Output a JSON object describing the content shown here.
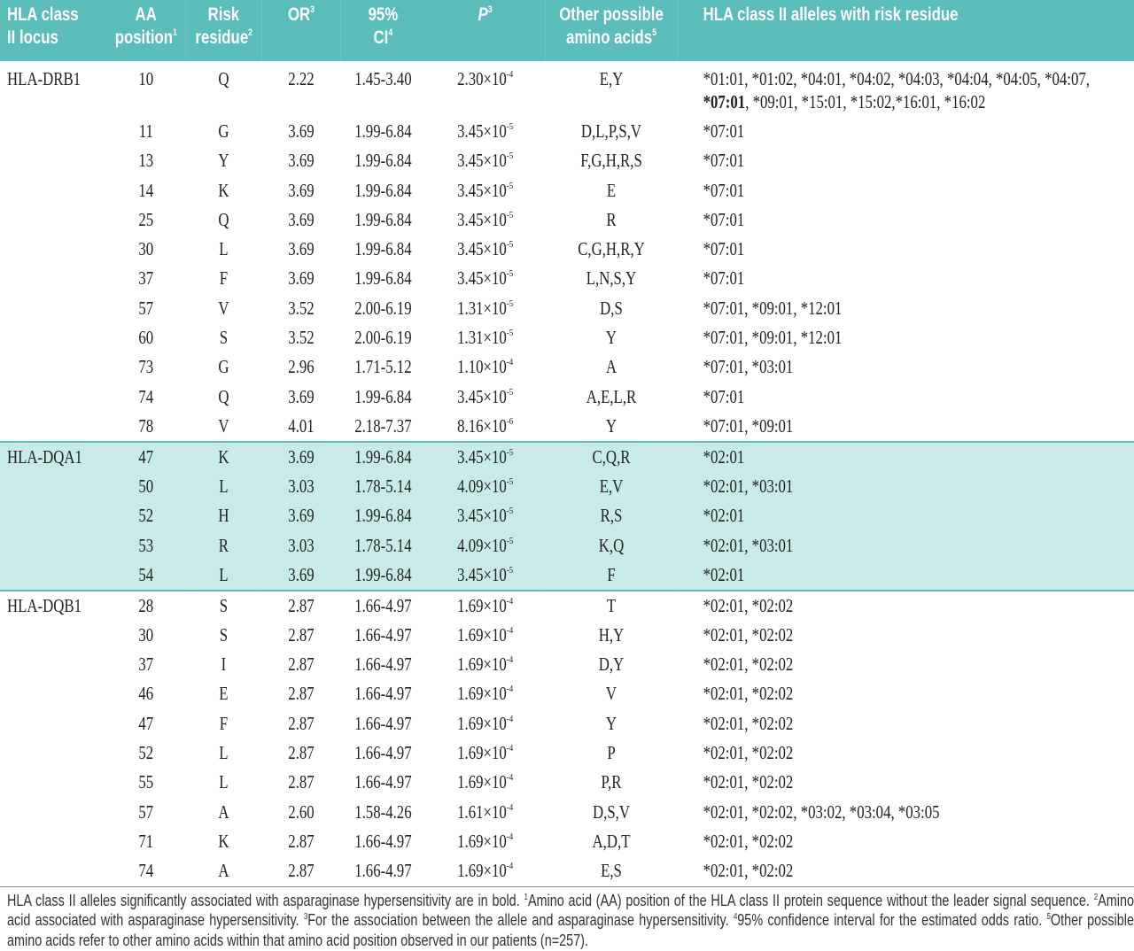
{
  "table": {
    "header": [
      {
        "text": "HLA class II locus"
      },
      {
        "text": "AA position",
        "sup": "1"
      },
      {
        "text": "Risk residue",
        "sup": "2"
      },
      {
        "text": "OR",
        "sup": "3"
      },
      {
        "text": "95% CI",
        "sup": "4"
      },
      {
        "text": "P",
        "sup": "3"
      },
      {
        "text": "Other possible amino acids",
        "sup": "5"
      },
      {
        "text": "HLA class II alleles with risk residue"
      }
    ],
    "groups": [
      {
        "locus": "HLA-DRB1",
        "rows": [
          [
            "10",
            "Q",
            "2.22",
            "1.45-3.40",
            {
              "base": "2.30×10",
              "exp": "-4"
            },
            "E,Y",
            [
              {
                "text": "*01:01, *01:02, *04:01, *04:02, *04:03, *04:04, *04:05, *04:07, "
              },
              {
                "text": "*07:01",
                "bold": true
              },
              {
                "text": ", *09:01, *15:01, *15:02,*16:01, *16:02"
              }
            ]
          ],
          [
            "11",
            "G",
            "3.69",
            "1.99-6.84",
            {
              "base": "3.45×10",
              "exp": "-5"
            },
            "D,L,P,S,V",
            "*07:01"
          ],
          [
            "13",
            "Y",
            "3.69",
            "1.99-6.84",
            {
              "base": "3.45×10",
              "exp": "-5"
            },
            "F,G,H,R,S",
            "*07:01"
          ],
          [
            "14",
            "K",
            "3.69",
            "1.99-6.84",
            {
              "base": "3.45×10",
              "exp": "-5"
            },
            "E",
            "*07:01"
          ],
          [
            "25",
            "Q",
            "3.69",
            "1.99-6.84",
            {
              "base": "3.45×10",
              "exp": "-5"
            },
            "R",
            "*07:01"
          ],
          [
            "30",
            "L",
            "3.69",
            "1.99-6.84",
            {
              "base": "3.45×10",
              "exp": "-5"
            },
            "C,G,H,R,Y",
            "*07:01"
          ],
          [
            "37",
            "F",
            "3.69",
            "1.99-6.84",
            {
              "base": "3.45×10",
              "exp": "-5"
            },
            "L,N,S,Y",
            "*07:01"
          ],
          [
            "57",
            "V",
            "3.52",
            "2.00-6.19",
            {
              "base": "1.31×10",
              "exp": "-5"
            },
            "D,S",
            "*07:01, *09:01, *12:01"
          ],
          [
            "60",
            "S",
            "3.52",
            "2.00-6.19",
            {
              "base": "1.31×10",
              "exp": "-5"
            },
            "Y",
            "*07:01, *09:01, *12:01"
          ],
          [
            "73",
            "G",
            "2.96",
            "1.71-5.12",
            {
              "base": "1.10×10",
              "exp": "-4"
            },
            "A",
            "*07:01, *03:01"
          ],
          [
            "74",
            "Q",
            "3.69",
            "1.99-6.84",
            {
              "base": "3.45×10",
              "exp": "-5"
            },
            "A,E,L,R",
            "*07:01"
          ],
          [
            "78",
            "V",
            "4.01",
            "2.18-7.37",
            {
              "base": "8.16×10",
              "exp": "-6"
            },
            "Y",
            "*07:01, *09:01"
          ]
        ]
      },
      {
        "locus": "HLA-DQA1",
        "rows": [
          [
            "47",
            "K",
            "3.69",
            "1.99-6.84",
            {
              "base": "3.45×10",
              "exp": "-5"
            },
            "C,Q,R",
            "*02:01"
          ],
          [
            "50",
            "L",
            "3.03",
            "1.78-5.14",
            {
              "base": "4.09×10",
              "exp": "-5"
            },
            "E,V",
            "*02:01, *03:01"
          ],
          [
            "52",
            "H",
            "3.69",
            "1.99-6.84",
            {
              "base": "3.45×10",
              "exp": "-5"
            },
            "R,S",
            "*02:01"
          ],
          [
            "53",
            "R",
            "3.03",
            "1.78-5.14",
            {
              "base": "4.09×10",
              "exp": "-5"
            },
            "K,Q",
            "*02:01, *03:01"
          ],
          [
            "54",
            "L",
            "3.69",
            "1.99-6.84",
            {
              "base": "3.45×10",
              "exp": "-5"
            },
            "F",
            "*02:01"
          ]
        ]
      },
      {
        "locus": "HLA-DQB1",
        "rows": [
          [
            "28",
            "S",
            "2.87",
            "1.66-4.97",
            {
              "base": "1.69×10",
              "exp": "-4"
            },
            "T",
            "*02:01, *02:02"
          ],
          [
            "30",
            "S",
            "2.87",
            "1.66-4.97",
            {
              "base": "1.69×10",
              "exp": "-4"
            },
            "H,Y",
            "*02:01, *02:02"
          ],
          [
            "37",
            "I",
            "2.87",
            "1.66-4.97",
            {
              "base": "1.69×10",
              "exp": "-4"
            },
            "D,Y",
            "*02:01, *02:02"
          ],
          [
            "46",
            "E",
            "2.87",
            "1.66-4.97",
            {
              "base": "1.69×10",
              "exp": "-4"
            },
            "V",
            "*02:01, *02:02"
          ],
          [
            "47",
            "F",
            "2.87",
            "1.66-4.97",
            {
              "base": "1.69×10",
              "exp": "-4"
            },
            "Y",
            "*02:01, *02:02"
          ],
          [
            "52",
            "L",
            "2.87",
            "1.66-4.97",
            {
              "base": "1.69×10",
              "exp": "-4"
            },
            "P",
            "*02:01, *02:02"
          ],
          [
            "55",
            "L",
            "2.87",
            "1.66-4.97",
            {
              "base": "1.69×10",
              "exp": "-4"
            },
            "P,R",
            "*02:01, *02:02"
          ],
          [
            "57",
            "A",
            "2.60",
            "1.58-4.26",
            {
              "base": "1.61×10",
              "exp": "-4"
            },
            "D,S,V",
            "*02:01, *02:02, *03:02, *03:04, *03:05"
          ],
          [
            "71",
            "K",
            "2.87",
            "1.66-4.97",
            {
              "base": "1.69×10",
              "exp": "-4"
            },
            "A,D,T",
            "*02:01, *02:02"
          ],
          [
            "74",
            "A",
            "2.87",
            "1.66-4.97",
            {
              "base": "1.69×10",
              "exp": "-4"
            },
            "E,S",
            "*02:01, *02:02"
          ]
        ]
      }
    ],
    "footnote": [
      {
        "text": "HLA class II alleles significantly associated with asparaginase hypersensitivity are in bold."
      },
      {
        "mark": "1",
        "text": "Amino acid (AA) position of the HLA class II protein sequence without the leader signal sequence."
      },
      {
        "mark": "2",
        "text": "Amino acid associated with asparaginase hypersensitivity."
      },
      {
        "mark": "3",
        "text": "For the association between the allele and asparaginase hypersensitivity."
      },
      {
        "mark": "4",
        "text": "95% confidence interval for the estimated odds ratio."
      },
      {
        "mark": "5",
        "text": "Other possible amino acids refer to other amino acids within that amino acid position observed in our patients (n=257)."
      }
    ]
  }
}
